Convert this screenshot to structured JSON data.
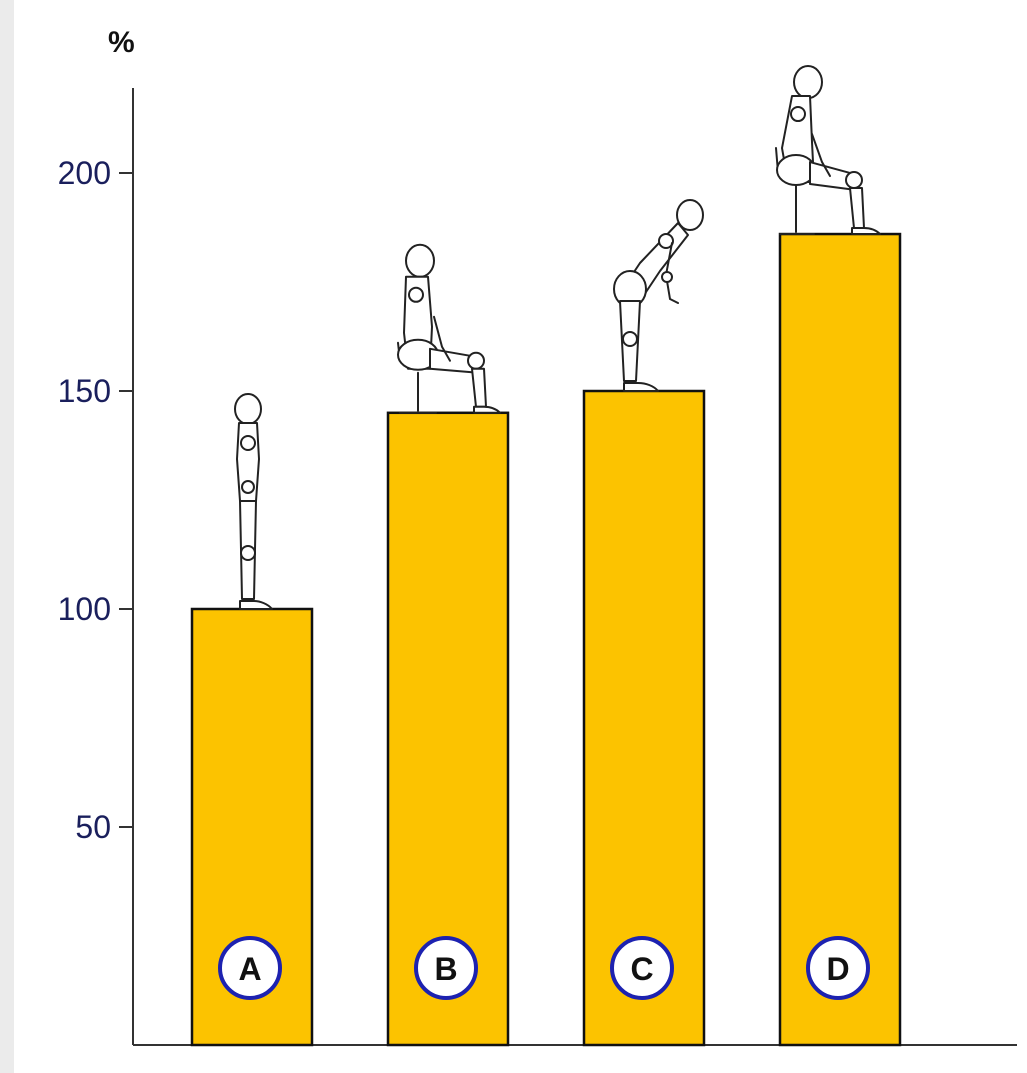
{
  "chart_data": {
    "type": "bar",
    "title": "",
    "xlabel": "",
    "ylabel": "%",
    "categories": [
      "A",
      "B",
      "C",
      "D"
    ],
    "values": [
      100,
      145,
      150,
      186
    ],
    "ylim": [
      0,
      220
    ],
    "yticks": [
      50,
      100,
      150,
      200
    ],
    "ytick_labels": [
      "50",
      "100",
      "150",
      "200"
    ],
    "grid": false,
    "legend": "none",
    "illustrations": [
      "standing-figure",
      "sitting-upright-figure",
      "standing-bent-forward-figure",
      "sitting-bent-forward-figure"
    ],
    "colors": {
      "bar_fill": "#fcc300",
      "bar_stroke": "#111111",
      "badge_ring": "#1d22b0",
      "tick_label": "#1a1f5c"
    }
  }
}
